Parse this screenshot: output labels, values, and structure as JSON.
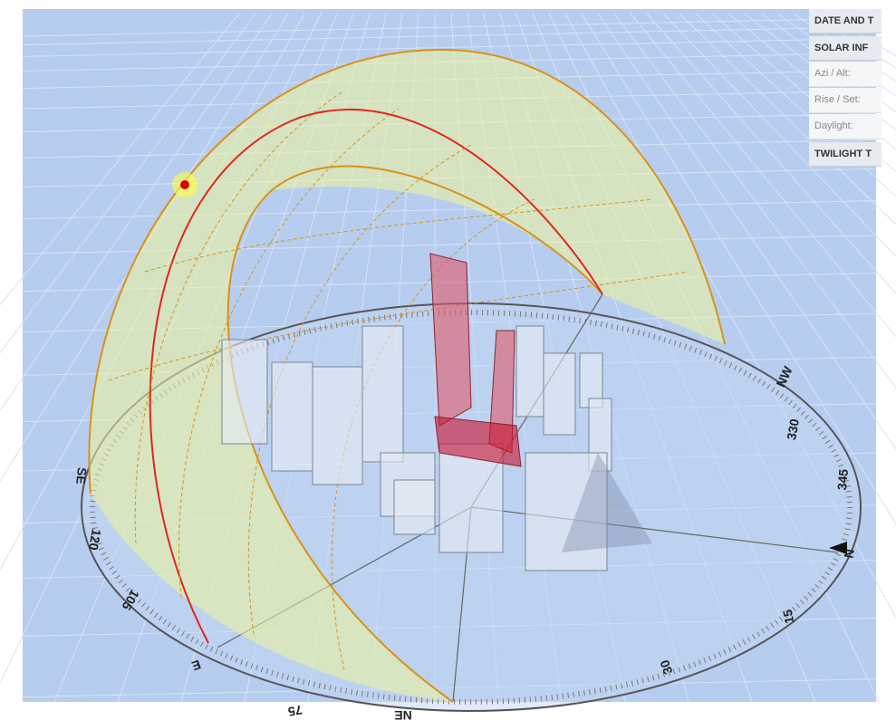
{
  "panel": {
    "sections": [
      "DATE AND T",
      "SOLAR INF",
      "TWILIGHT T"
    ],
    "rows": [
      "Azi / Alt:",
      "Rise / Set:",
      "Daylight:"
    ]
  },
  "compass": {
    "labels": [
      "N",
      "NW",
      "330",
      "345",
      "15",
      "30",
      "NE",
      "75",
      "E",
      "105",
      "120",
      "SE"
    ]
  }
}
